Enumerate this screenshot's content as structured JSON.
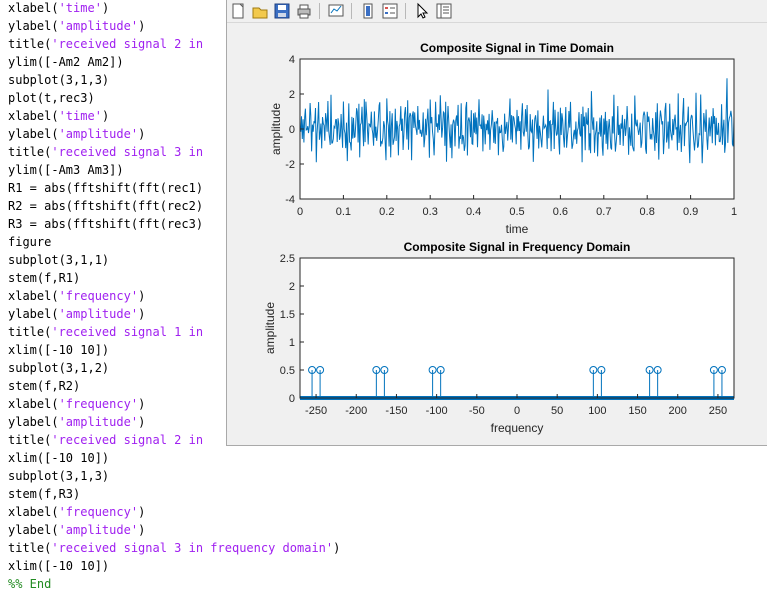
{
  "editor": {
    "lines": [
      [
        {
          "t": "xlabel(",
          "k": "n"
        },
        {
          "t": "'time'",
          "k": "s"
        },
        {
          "t": ")",
          "k": "n"
        }
      ],
      [
        {
          "t": "ylabel(",
          "k": "n"
        },
        {
          "t": "'amplitude'",
          "k": "s"
        },
        {
          "t": ")",
          "k": "n"
        }
      ],
      [
        {
          "t": "title(",
          "k": "n"
        },
        {
          "t": "'received signal 2 in",
          "k": "s"
        }
      ],
      [
        {
          "t": "ylim([-Am2 Am2])",
          "k": "n"
        }
      ],
      [
        {
          "t": "subplot(3,1,3)",
          "k": "n"
        }
      ],
      [
        {
          "t": "plot(t,rec3)",
          "k": "n"
        }
      ],
      [
        {
          "t": "xlabel(",
          "k": "n"
        },
        {
          "t": "'time'",
          "k": "s"
        },
        {
          "t": ")",
          "k": "n"
        }
      ],
      [
        {
          "t": "ylabel(",
          "k": "n"
        },
        {
          "t": "'amplitude'",
          "k": "s"
        },
        {
          "t": ")",
          "k": "n"
        }
      ],
      [
        {
          "t": "title(",
          "k": "n"
        },
        {
          "t": "'received signal 3 in",
          "k": "s"
        }
      ],
      [
        {
          "t": "ylim([-Am3 Am3])",
          "k": "n"
        }
      ],
      [
        {
          "t": "R1 = abs(fftshift(fft(rec1)",
          "k": "n"
        }
      ],
      [
        {
          "t": "R2 = abs(fftshift(fft(rec2)",
          "k": "n"
        }
      ],
      [
        {
          "t": "R3 = abs(fftshift(fft(rec3)",
          "k": "n"
        }
      ],
      [
        {
          "t": "figure",
          "k": "n"
        }
      ],
      [
        {
          "t": "subplot(3,1,1)",
          "k": "n"
        }
      ],
      [
        {
          "t": "stem(f,R1)",
          "k": "n"
        }
      ],
      [
        {
          "t": "xlabel(",
          "k": "n"
        },
        {
          "t": "'frequency'",
          "k": "s"
        },
        {
          "t": ")",
          "k": "n"
        }
      ],
      [
        {
          "t": "ylabel(",
          "k": "n"
        },
        {
          "t": "'amplitude'",
          "k": "s"
        },
        {
          "t": ")",
          "k": "n"
        }
      ],
      [
        {
          "t": "title(",
          "k": "n"
        },
        {
          "t": "'received signal 1 in",
          "k": "s"
        }
      ],
      [
        {
          "t": "xlim([-10 10])",
          "k": "n"
        }
      ],
      [
        {
          "t": "subplot(3,1,2)",
          "k": "n"
        }
      ],
      [
        {
          "t": "stem(f,R2)",
          "k": "n"
        }
      ],
      [
        {
          "t": "xlabel(",
          "k": "n"
        },
        {
          "t": "'frequency'",
          "k": "s"
        },
        {
          "t": ")",
          "k": "n"
        }
      ],
      [
        {
          "t": "ylabel(",
          "k": "n"
        },
        {
          "t": "'amplitude'",
          "k": "s"
        },
        {
          "t": ")",
          "k": "n"
        }
      ],
      [
        {
          "t": "title(",
          "k": "n"
        },
        {
          "t": "'received signal 2 in",
          "k": "s"
        }
      ],
      [
        {
          "t": "xlim([-10 10])",
          "k": "n"
        }
      ],
      [
        {
          "t": "subplot(3,1,3)",
          "k": "n"
        }
      ],
      [
        {
          "t": "stem(f,R3)",
          "k": "n"
        }
      ],
      [
        {
          "t": "xlabel(",
          "k": "n"
        },
        {
          "t": "'frequency'",
          "k": "s"
        },
        {
          "t": ")",
          "k": "n"
        }
      ],
      [
        {
          "t": "ylabel(",
          "k": "n"
        },
        {
          "t": "'amplitude'",
          "k": "s"
        },
        {
          "t": ")",
          "k": "n"
        }
      ],
      [
        {
          "t": "title(",
          "k": "n"
        },
        {
          "t": "'received signal 3 in frequency domain'",
          "k": "s"
        },
        {
          "t": ")",
          "k": "n"
        }
      ],
      [
        {
          "t": "xlim([-10 10])",
          "k": "n"
        }
      ],
      [
        {
          "t": "%% End",
          "k": "c"
        }
      ]
    ]
  },
  "toolbar": {
    "buttons": [
      "new-figure-icon",
      "open-file-icon",
      "save-icon",
      "print-icon",
      "link-plot-icon",
      "insert-colorbar-icon",
      "insert-legend-icon",
      "pointer-icon",
      "property-inspector-icon"
    ]
  },
  "colors": {
    "line": "#0072bd",
    "axes_bg": "#ffffff",
    "figure_bg": "#f0f0f0",
    "string": "#a020f0",
    "comment": "#228b22"
  },
  "chart_data": [
    {
      "type": "line",
      "title": "Composite Signal in Time Domain",
      "xlabel": "time",
      "ylabel": "amplitude",
      "xlim": [
        0,
        1
      ],
      "ylim": [
        -4,
        4
      ],
      "xticks": [
        "0",
        "0.1",
        "0.2",
        "0.3",
        "0.4",
        "0.5",
        "0.6",
        "0.7",
        "0.8",
        "0.9",
        "1"
      ],
      "yticks": [
        "-4",
        "-2",
        "0",
        "2",
        "4"
      ],
      "series": [
        {
          "description": "noisy composite signal, roughly within ±2",
          "color": "#0072bd"
        }
      ]
    },
    {
      "type": "stem",
      "title": "Composite Signal in Frequency Domain",
      "xlabel": "frequency",
      "ylabel": "amplitude",
      "xlim": [
        -270,
        270
      ],
      "ylim": [
        0,
        2.5
      ],
      "xticks": [
        "-250",
        "-200",
        "-150",
        "-100",
        "-50",
        "0",
        "50",
        "100",
        "150",
        "200",
        "250"
      ],
      "yticks": [
        "0",
        "0.5",
        "1",
        "1.5",
        "2",
        "2.5"
      ],
      "peaks": [
        {
          "x": -255,
          "y": 0.5
        },
        {
          "x": -245,
          "y": 0.5
        },
        {
          "x": -175,
          "y": 0.5
        },
        {
          "x": -165,
          "y": 0.5
        },
        {
          "x": -105,
          "y": 0.5
        },
        {
          "x": -95,
          "y": 0.5
        },
        {
          "x": 95,
          "y": 0.5
        },
        {
          "x": 105,
          "y": 0.5
        },
        {
          "x": 165,
          "y": 0.5
        },
        {
          "x": 175,
          "y": 0.5
        },
        {
          "x": 245,
          "y": 0.5
        },
        {
          "x": 255,
          "y": 0.5
        }
      ],
      "baseline_value": 0
    }
  ]
}
